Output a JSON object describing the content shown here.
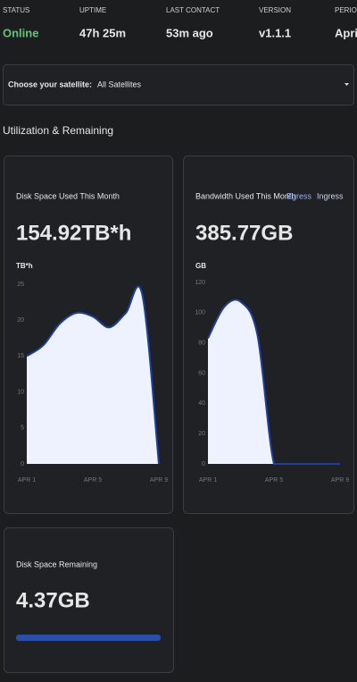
{
  "status": [
    {
      "label": "STATUS",
      "value": "Online"
    },
    {
      "label": "UPTIME",
      "value": "47h 25m"
    },
    {
      "label": "LAST CONTACT",
      "value": "53m ago"
    },
    {
      "label": "VERSION",
      "value": "v1.1.1"
    },
    {
      "label": "PERIOD",
      "value": "April"
    }
  ],
  "satellite": {
    "label": "Choose your satellite:",
    "value": "All Satellites"
  },
  "section_title": "Utilization & Remaining",
  "disk_used": {
    "title": "Disk Space Used This Month",
    "value": "154.92TB*h",
    "unit": "TB*h",
    "chart": {
      "type": "area",
      "categories": [
        "APR 1",
        null,
        null,
        null,
        "APR 5",
        null,
        null,
        null,
        "APR 9"
      ],
      "values": [
        15,
        16.5,
        19.5,
        21,
        20.5,
        19,
        21,
        23.5,
        0
      ],
      "ylim": [
        0,
        25
      ],
      "yticks": [
        0,
        5,
        10,
        15,
        20,
        25
      ],
      "color": "#1f3f9a"
    }
  },
  "bandwidth": {
    "title": "Bandwidth Used This Month",
    "legend": [
      "Egress",
      "Ingress"
    ],
    "value": "385.77GB",
    "unit": "GB",
    "chart": {
      "type": "area",
      "categories": [
        "APR 1",
        null,
        null,
        null,
        "APR 5",
        null,
        null,
        null,
        "APR 9"
      ],
      "values": [
        83,
        104,
        107,
        85,
        0,
        0,
        0,
        0,
        0
      ],
      "ylim": [
        0,
        120
      ],
      "yticks": [
        0,
        20,
        40,
        60,
        80,
        100,
        120
      ],
      "color": "#1f3f9a"
    }
  },
  "remaining": {
    "title": "Disk Space Remaining",
    "value": "4.37GB"
  }
}
